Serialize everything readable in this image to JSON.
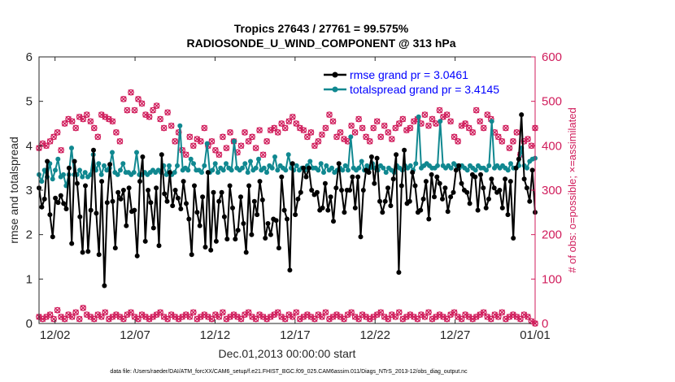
{
  "chart_data": {
    "type": "line",
    "title": "Tropics 27643 / 27761 = 99.575%",
    "subtitle": "RADIOSONDE_U_WIND_COMPONENT @ 313 hPa",
    "xlabel": "Dec.01,2013 00:00:00 start",
    "ylabel_left": "rmse and totalspread",
    "ylabel_right": "# of obs: o=possible; ×=assimilated",
    "xlim": [
      0,
      31
    ],
    "ylim_left": [
      0,
      6
    ],
    "ylim_right": [
      0,
      600
    ],
    "x_tick_values": [
      1,
      6,
      11,
      16,
      21,
      26,
      31
    ],
    "x_tick_labels": [
      "12/02",
      "12/07",
      "12/12",
      "12/17",
      "12/22",
      "12/27",
      "01/01"
    ],
    "y_ticks_left": [
      "0",
      "1",
      "2",
      "3",
      "4",
      "5",
      "6"
    ],
    "y_ticks_right": [
      "0",
      "100",
      "200",
      "300",
      "400",
      "500",
      "600"
    ],
    "legend": [
      "rmse grand pr = 3.0461",
      "totalspread grand pr = 3.4145"
    ],
    "legend_position": "top-right",
    "footer": "data file: /Users/raeder/DAI/ATM_forcXX/CAM6_setup/f.e21.FHIST_BGC.f09_025.CAM6assim.011/Diags_NTrS_2013-12/obs_diag_output.nc",
    "colors": {
      "rmse": "#000000",
      "spread": "#108890",
      "obs": "#d01c5b"
    },
    "series": [
      {
        "name": "rmse",
        "values": [
          3.05,
          2.62,
          2.8,
          3.65,
          2.45,
          1.95,
          2.82,
          2.72,
          2.88,
          2.7,
          2.58,
          3.5,
          1.8,
          3.65,
          3.15,
          2.4,
          1.6,
          3.1,
          1.62,
          2.55,
          3.9,
          2.48,
          1.55,
          3.2,
          0.85,
          2.72,
          3.58,
          2.75,
          1.7,
          2.95,
          2.8,
          3.0,
          2.2,
          3.05,
          2.52,
          2.55,
          1.52,
          3.2,
          3.75,
          1.85,
          3.0,
          2.72,
          2.15,
          3.05,
          1.75,
          3.8,
          2.92,
          2.75,
          3.4,
          2.65,
          3.0,
          2.82,
          2.58,
          3.2,
          2.7,
          2.35,
          1.55,
          3.1,
          2.5,
          2.2,
          2.85,
          1.72,
          3.4,
          1.65,
          2.95,
          1.85,
          2.75,
          2.95,
          2.4,
          1.9,
          3.1,
          2.6,
          1.9,
          2.1,
          2.85,
          2.25,
          1.6,
          3.1,
          2.0,
          2.75,
          2.45,
          3.2,
          2.78,
          1.92,
          2.25,
          2.0,
          2.35,
          2.32,
          1.7,
          3.3,
          2.55,
          2.35,
          1.2,
          3.6,
          2.45,
          2.8,
          2.95,
          3.5,
          3.3,
          3.5,
          3.0,
          2.9,
          2.95,
          2.55,
          2.6,
          3.15,
          2.55,
          2.85,
          2.3,
          3.05,
          3.6,
          3.0,
          2.5,
          3.0,
          3.0,
          3.3,
          2.6,
          3.3,
          1.95,
          3.0,
          3.45,
          3.4,
          3.75,
          3.15,
          3.72,
          2.75,
          2.5,
          2.75,
          3.05,
          2.65,
          3.25,
          3.8,
          1.15,
          3.1,
          3.9,
          2.7,
          2.75,
          3.4,
          3.1,
          2.5,
          2.55,
          2.8,
          3.2,
          2.35,
          3.35,
          2.85,
          3.3,
          3.15,
          2.8,
          3.05,
          2.52,
          2.85,
          2.95,
          3.45,
          3.55,
          3.15,
          3.0,
          2.95,
          2.7,
          3.35,
          3.3,
          2.55,
          3.35,
          3.05,
          2.6,
          2.8,
          3.25,
          3.05,
          2.95,
          3.0,
          2.6,
          3.25,
          2.45,
          3.2,
          1.92,
          3.5,
          3.7,
          4.7,
          3.25,
          3.05,
          2.75,
          3.45,
          2.5
        ],
        "marker": "circle"
      },
      {
        "name": "totalspread",
        "values": [
          3.35,
          3.2,
          3.45,
          3.3,
          3.6,
          3.25,
          3.45,
          3.7,
          3.3,
          3.35,
          3.1,
          3.35,
          3.95,
          3.35,
          3.35,
          3.45,
          3.3,
          3.4,
          3.3,
          3.35,
          3.8,
          3.45,
          3.6,
          3.35,
          3.55,
          3.45,
          3.5,
          3.85,
          3.4,
          3.35,
          3.45,
          3.6,
          3.4,
          3.4,
          3.35,
          3.4,
          3.85,
          3.35,
          3.35,
          3.4,
          3.35,
          3.4,
          3.45,
          3.4,
          3.45,
          3.4,
          3.55,
          3.35,
          3.55,
          3.35,
          3.4,
          3.55,
          4.45,
          3.45,
          3.5,
          3.45,
          3.7,
          3.6,
          3.45,
          3.45,
          3.4,
          3.55,
          4.05,
          3.4,
          3.45,
          3.6,
          3.4,
          3.5,
          3.45,
          3.6,
          3.5,
          3.45,
          4.1,
          3.5,
          3.45,
          3.5,
          3.6,
          3.4,
          3.65,
          3.45,
          3.5,
          3.7,
          3.45,
          3.5,
          3.4,
          3.55,
          3.5,
          3.75,
          3.45,
          3.55,
          3.5,
          3.45,
          3.8,
          3.5,
          3.45,
          3.55,
          3.45,
          3.5,
          3.45,
          3.55,
          3.65,
          3.5,
          3.5,
          3.45,
          3.6,
          3.4,
          3.55,
          3.45,
          3.5,
          3.4,
          3.45,
          3.5,
          3.45,
          3.55,
          3.45,
          4.2,
          3.5,
          3.45,
          3.5,
          3.65,
          3.45,
          3.55,
          3.5,
          3.6,
          3.5,
          3.45,
          3.55,
          3.5,
          3.4,
          3.5,
          3.45,
          3.4,
          3.55,
          3.5,
          3.45,
          3.55,
          3.5,
          3.55,
          3.45,
          3.6,
          4.65,
          3.5,
          3.55,
          3.6,
          3.55,
          3.5,
          3.5,
          3.55,
          4.55,
          3.55,
          3.5,
          3.55,
          3.5,
          3.6,
          3.55,
          3.5,
          3.55,
          3.5,
          3.45,
          3.55,
          3.5,
          3.45,
          3.55,
          3.5,
          3.5,
          3.45,
          3.55,
          4.55,
          3.5,
          3.55,
          3.5,
          3.55,
          3.5,
          3.45,
          3.6,
          3.5,
          3.5,
          3.55,
          3.95,
          3.55,
          3.5,
          3.65,
          3.7,
          3.72
        ],
        "marker": "circle"
      },
      {
        "name": "obs_possible_upper",
        "values": [
          395,
          405,
          400,
          410,
          420,
          430,
          390,
          450,
          460,
          455,
          440,
          465,
          460,
          470,
          455,
          440,
          420,
          470,
          465,
          460,
          455,
          430,
          410,
          505,
          480,
          520,
          480,
          505,
          495,
          470,
          465,
          480,
          490,
          460,
          440,
          475,
          445,
          410,
          430,
          390,
          380,
          420,
          400,
          415,
          410,
          440,
          400,
          410,
          390,
          380,
          420,
          395,
          430,
          410,
          385,
          400,
          430,
          410,
          420,
          395,
          435,
          380,
          410,
          435,
          440,
          430,
          450,
          440,
          455,
          465,
          450,
          440,
          435,
          420,
          430,
          400,
          410,
          425,
          440,
          470,
          455,
          420,
          430,
          415,
          410,
          445,
          430,
          460,
          440,
          420,
          410,
          440,
          455,
          420,
          445,
          430,
          415,
          440,
          450,
          460,
          435,
          440,
          455,
          460,
          450,
          470,
          445,
          460,
          450,
          480,
          465,
          470,
          455,
          420,
          410,
          445,
          450,
          440,
          430,
          480,
          455,
          440,
          470,
          460,
          430,
          420,
          410,
          440,
          395,
          410,
          430,
          380,
          410,
          415,
          400,
          440
        ],
        "marker": "o"
      },
      {
        "name": "obs_possible_lower",
        "values": [
          15,
          10,
          15,
          20,
          10,
          30,
          15,
          10,
          20,
          15,
          25,
          10,
          35,
          20,
          15,
          10,
          20,
          15,
          25,
          10,
          15,
          20,
          15,
          10,
          20,
          25,
          15,
          10,
          20,
          15,
          10,
          15,
          20,
          25,
          15,
          10,
          20,
          15,
          10,
          15,
          20,
          15,
          25,
          10,
          15,
          20,
          15,
          10,
          20,
          15,
          25,
          10,
          15,
          20,
          15,
          10,
          20,
          25,
          15,
          10,
          20,
          15,
          10,
          15,
          20,
          25,
          15,
          10,
          20,
          15,
          25,
          10,
          15,
          20,
          15,
          10,
          20,
          15,
          25,
          10,
          15,
          20,
          15,
          10,
          20,
          25,
          15,
          10,
          20,
          15,
          10,
          15,
          20,
          25,
          15,
          10,
          20,
          15,
          25,
          10,
          15,
          20,
          15,
          10,
          20,
          15,
          25,
          10,
          15,
          20,
          15,
          10,
          20,
          25,
          15,
          10,
          20,
          15,
          10,
          15,
          20,
          25,
          15,
          10,
          20,
          15,
          25,
          10,
          15,
          20,
          15,
          10,
          20,
          15,
          5,
          0
        ],
        "marker": "o"
      }
    ]
  }
}
